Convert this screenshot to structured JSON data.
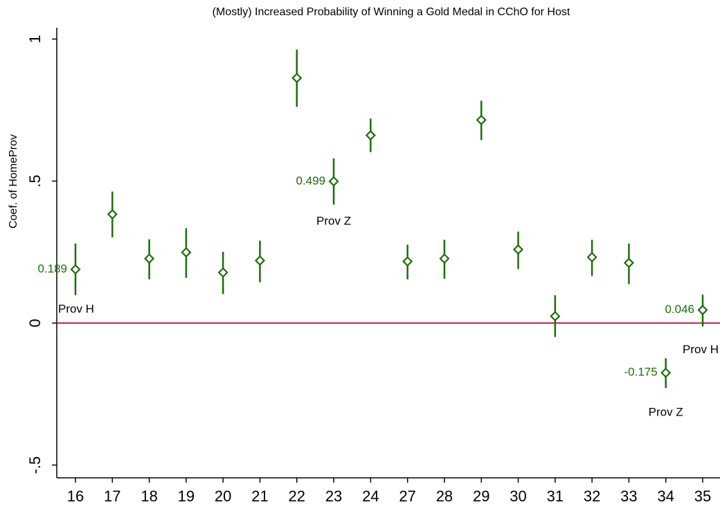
{
  "chart_data": {
    "type": "coefplot",
    "title": "(Mostly) Increased Probability of Winning a Gold Medal in CChO for Host",
    "y_label": "Coef. of HomeProv",
    "categories": [
      "16",
      "17",
      "18",
      "19",
      "20",
      "21",
      "22",
      "23",
      "24",
      "27",
      "28",
      "29",
      "30",
      "31",
      "32",
      "33",
      "34",
      "35"
    ],
    "series": [
      {
        "color": "#1e6b0c",
        "values": [
          0.189,
          0.383,
          0.227,
          0.249,
          0.178,
          0.22,
          0.863,
          0.499,
          0.661,
          0.217,
          0.227,
          0.715,
          0.259,
          0.024,
          0.232,
          0.212,
          -0.175,
          0.046
        ],
        "lower": [
          0.098,
          0.302,
          0.154,
          0.159,
          0.102,
          0.144,
          0.761,
          0.417,
          0.602,
          0.154,
          0.156,
          0.644,
          0.19,
          -0.049,
          0.166,
          0.137,
          -0.229,
          -0.012
        ],
        "upper": [
          0.28,
          0.463,
          0.295,
          0.334,
          0.251,
          0.29,
          0.963,
          0.58,
          0.72,
          0.276,
          0.293,
          0.783,
          0.322,
          0.098,
          0.293,
          0.28,
          -0.124,
          0.1
        ],
        "value_labels": [
          "0.189",
          null,
          null,
          null,
          null,
          null,
          null,
          "0.499",
          null,
          null,
          null,
          null,
          null,
          null,
          null,
          null,
          "-0.175",
          "0.046"
        ],
        "notes": [
          "Prov H",
          null,
          null,
          null,
          null,
          null,
          null,
          "Prov Z",
          null,
          null,
          null,
          null,
          null,
          null,
          null,
          null,
          "Prov Z",
          "Prov H"
        ]
      }
    ],
    "ylim": [
      -0.545,
      1.04
    ],
    "yticks": [
      1,
      {
        "value": 0.5,
        "label": ".5"
      },
      0,
      {
        "value": -0.5,
        "label": "-.5"
      }
    ],
    "reference_line": {
      "value": 0,
      "color": "#b5174a"
    }
  }
}
